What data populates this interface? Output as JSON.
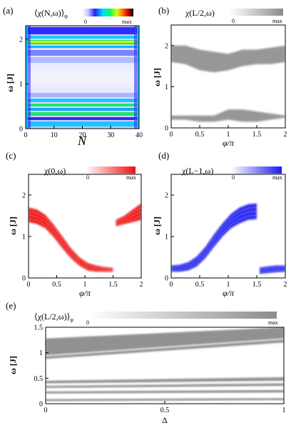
{
  "colors": {
    "gray_max": "#8c8c8c",
    "red_max": "#ee1111",
    "blue_max": "#1a1aee",
    "jet": [
      "#ffffff",
      "#c6c6ff",
      "#2222ff",
      "#00d4ff",
      "#00ff66",
      "#e6ff00",
      "#ff6600",
      "#cc0000",
      "#000000"
    ]
  },
  "chart_data": [
    {
      "id": "a",
      "panel_label": "(a)",
      "type": "heatmap",
      "colorbar": {
        "label": "⟨χ(N,ω)⟩",
        "label_sub": "φ",
        "min_label": "0",
        "max_label": "max",
        "colormap": "jet"
      },
      "xlabel": "N",
      "ylabel": "ω [J]",
      "xlim": [
        0,
        40
      ],
      "ylim": [
        0,
        2.3
      ],
      "xticks": [
        0,
        10,
        20,
        30,
        40
      ],
      "yticks": [
        0,
        1,
        2
      ],
      "grid": false
    },
    {
      "id": "b",
      "panel_label": "(b)",
      "type": "heatmap",
      "colorbar": {
        "label": "χ(L/2,ω)",
        "min_label": "0",
        "max_label": "max",
        "color": "gray"
      },
      "xlabel": "φ/π",
      "ylabel": "ω [J]",
      "xlim": [
        0,
        2
      ],
      "ylim": [
        0,
        2.5
      ],
      "xticks": [
        0,
        0.5,
        1,
        1.5,
        2
      ],
      "yticks": [
        0,
        1,
        2
      ],
      "bands": [
        {
          "phi": [
            0,
            0.25,
            0.5,
            0.75,
            1.0,
            1.25,
            1.5,
            1.75,
            2.0
          ],
          "lo": [
            1.6,
            1.55,
            1.4,
            1.35,
            1.4,
            1.5,
            1.55,
            1.55,
            1.6
          ],
          "hi": [
            2.0,
            2.0,
            1.9,
            1.85,
            1.8,
            1.9,
            1.9,
            1.95,
            2.0
          ]
        },
        {
          "phi": [
            0,
            0.25,
            0.5,
            0.75,
            1.0,
            1.25,
            1.5,
            1.75,
            2.0
          ],
          "lo": [
            0.2,
            0.2,
            0.15,
            0.15,
            0.2,
            0.15,
            0.15,
            0.2,
            0.25
          ],
          "hi": [
            0.3,
            0.3,
            0.3,
            0.3,
            0.45,
            0.45,
            0.4,
            0.35,
            0.3
          ]
        }
      ],
      "grid": false
    },
    {
      "id": "c",
      "panel_label": "(c)",
      "type": "heatmap",
      "colorbar": {
        "label": "χ(0,ω)",
        "min_label": "0",
        "max_label": "max",
        "color": "red"
      },
      "xlabel": "φ/π",
      "ylabel": "ω [J]",
      "xlim": [
        0,
        2
      ],
      "ylim": [
        0,
        2.5
      ],
      "xticks": [
        0,
        0.5,
        1,
        1.5,
        2
      ],
      "yticks": [
        0,
        1,
        2
      ],
      "bands": [
        {
          "phi": [
            0,
            0.15,
            0.3,
            0.45,
            0.6,
            0.75,
            0.9,
            1.05,
            1.2,
            1.35,
            1.5
          ],
          "lo": [
            1.35,
            1.3,
            1.2,
            0.98,
            0.72,
            0.48,
            0.3,
            0.18,
            0.15,
            0.15,
            0.15
          ],
          "hi": [
            1.7,
            1.65,
            1.52,
            1.28,
            1.0,
            0.72,
            0.5,
            0.36,
            0.3,
            0.26,
            0.24
          ]
        },
        {
          "phi": [
            1.55,
            1.7,
            1.85,
            2.0
          ],
          "lo": [
            1.25,
            1.3,
            1.35,
            1.4
          ],
          "hi": [
            1.4,
            1.5,
            1.65,
            1.8
          ]
        }
      ],
      "grid": false
    },
    {
      "id": "d",
      "panel_label": "(d)",
      "type": "heatmap",
      "colorbar": {
        "label": "χ(L−1,ω)",
        "min_label": "0",
        "max_label": "max",
        "color": "blue"
      },
      "xlabel": "φ/π",
      "ylabel": "ω [J]",
      "xlim": [
        0,
        2
      ],
      "ylim": [
        0,
        2.5
      ],
      "xticks": [
        0,
        0.5,
        1,
        1.5,
        2
      ],
      "yticks": [
        0,
        1,
        2
      ],
      "bands": [
        {
          "phi": [
            0,
            0.15,
            0.3,
            0.45,
            0.6,
            0.75,
            0.9,
            1.05,
            1.2,
            1.35,
            1.5
          ],
          "lo": [
            0.15,
            0.15,
            0.18,
            0.28,
            0.48,
            0.75,
            1.0,
            1.2,
            1.32,
            1.4,
            1.42
          ],
          "hi": [
            0.3,
            0.32,
            0.38,
            0.52,
            0.75,
            1.05,
            1.32,
            1.55,
            1.7,
            1.78,
            1.8
          ]
        },
        {
          "phi": [
            1.55,
            1.7,
            1.85,
            2.0
          ],
          "lo": [
            0.1,
            0.12,
            0.14,
            0.15
          ],
          "hi": [
            0.25,
            0.28,
            0.3,
            0.3
          ]
        }
      ],
      "grid": false
    },
    {
      "id": "e",
      "panel_label": "(e)",
      "type": "heatmap",
      "colorbar": {
        "label": "⟨χ(L/2,ω)⟩",
        "label_sub": "φ",
        "min_label": "0",
        "max_label": "max",
        "color": "gray"
      },
      "xlabel": "Δ",
      "ylabel": "ω [J]",
      "xlim": [
        0,
        1
      ],
      "ylim": [
        0,
        1.5
      ],
      "xticks": [
        0,
        0.5,
        1
      ],
      "xtick_labels": [
        "0",
        "0.5",
        "1"
      ],
      "yticks": [
        0,
        0.5,
        1,
        1.5
      ],
      "ytick_labels": [
        "0",
        "0.5",
        "1",
        "1.5"
      ],
      "bands": [
        {
          "x": [
            0,
            1
          ],
          "lo": [
            0.95,
            1.28
          ],
          "hi": [
            1.28,
            1.5
          ]
        },
        {
          "x": [
            0,
            1
          ],
          "lo": [
            0.88,
            1.2
          ],
          "hi": [
            0.93,
            1.26
          ]
        },
        {
          "x": [
            0,
            1
          ],
          "lo": [
            0.4,
            0.45
          ],
          "hi": [
            0.45,
            0.52
          ]
        },
        {
          "x": [
            0,
            1
          ],
          "lo": [
            0.31,
            0.35
          ],
          "hi": [
            0.35,
            0.4
          ]
        },
        {
          "x": [
            0,
            1
          ],
          "lo": [
            0.2,
            0.22
          ],
          "hi": [
            0.24,
            0.27
          ]
        },
        {
          "x": [
            0,
            1
          ],
          "lo": [
            0.05,
            0.07
          ],
          "hi": [
            0.09,
            0.11
          ]
        }
      ],
      "grid": false
    }
  ]
}
